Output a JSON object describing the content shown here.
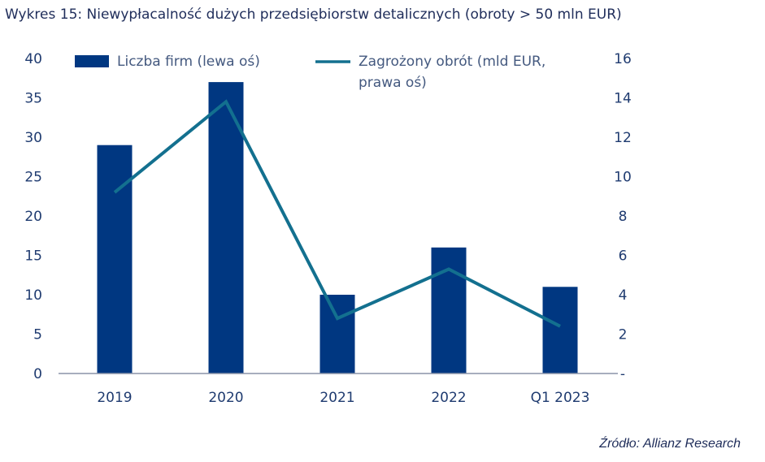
{
  "chart_data": {
    "type": "bar",
    "title": "Wykres 15: Niewypłacalność dużych przedsiębiorstw detalicznych (obroty > 50 mln EUR)",
    "categories": [
      "2019",
      "2020",
      "2021",
      "2022",
      "Q1 2023"
    ],
    "series": [
      {
        "name": "Liczba firm (lewa oś)",
        "kind": "bar",
        "axis": "left",
        "values": [
          29,
          37,
          10,
          16,
          11
        ],
        "color": "#003781"
      },
      {
        "name_lines": [
          "Zagrożony obrót (mld EUR,",
          "prawa oś)"
        ],
        "kind": "line",
        "axis": "right",
        "values": [
          9.2,
          13.8,
          2.8,
          5.3,
          2.4
        ],
        "color": "#13708f"
      }
    ],
    "left_axis": {
      "ylim": [
        0,
        40
      ],
      "ticks": [
        "0",
        "5",
        "10",
        "15",
        "20",
        "25",
        "30",
        "35",
        "40"
      ]
    },
    "right_axis": {
      "ylim": [
        0,
        16
      ],
      "ticks": [
        "-",
        "2",
        "4",
        "6",
        "8",
        "10",
        "12",
        "14",
        "16"
      ]
    },
    "legend_position": "top",
    "grid": false
  },
  "source": "Źródło: Allianz Research"
}
